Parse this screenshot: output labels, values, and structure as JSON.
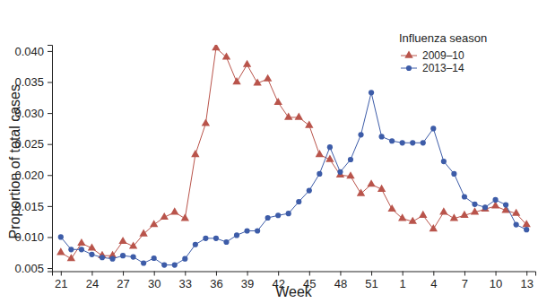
{
  "chart_data": {
    "type": "line",
    "x_label": "Week",
    "y_label": "Proportion of total cases",
    "legend_title": "Influenza season",
    "legend": "upper right",
    "grid": false,
    "categories": [
      21,
      null,
      null,
      24,
      null,
      null,
      27,
      null,
      null,
      30,
      null,
      null,
      33,
      null,
      null,
      36,
      null,
      null,
      39,
      null,
      null,
      42,
      null,
      null,
      45,
      null,
      null,
      48,
      null,
      null,
      51,
      null,
      null,
      1,
      null,
      null,
      4,
      null,
      null,
      7,
      null,
      null,
      10,
      null,
      null,
      13
    ],
    "ylim": [
      0.0045,
      0.041
    ],
    "yticks": [
      0.005,
      {
        "value": 0.01,
        "label": "0.010"
      },
      0.015,
      {
        "value": 0.02,
        "label": "0.020"
      },
      0.025,
      {
        "value": 0.03,
        "label": "0.030"
      },
      0.035,
      {
        "value": 0.04,
        "label": "0.040"
      }
    ],
    "series": [
      {
        "name": "2009–10",
        "color": "#b9544b",
        "marker": "triangle",
        "line_style": "solid",
        "values": [
          0.0075,
          0.0065,
          0.009,
          0.0082,
          0.007,
          0.007,
          0.0093,
          0.0085,
          0.0105,
          0.012,
          0.0132,
          0.014,
          0.013,
          0.0233,
          0.0283,
          0.0405,
          0.039,
          0.035,
          0.0378,
          0.0348,
          0.0355,
          0.0317,
          0.0293,
          0.0293,
          0.028,
          0.0233,
          0.0225,
          0.02,
          0.0198,
          0.017,
          0.0185,
          0.0177,
          0.0145,
          0.013,
          0.0125,
          0.0135,
          0.0113,
          0.014,
          0.013,
          0.0135,
          0.014,
          0.0145,
          0.015,
          0.0143,
          0.0138,
          0.012
        ]
      },
      {
        "name": "2013–14",
        "color": "#3d5ca8",
        "marker": "circle",
        "line_style": "solid",
        "values": [
          0.01,
          0.008,
          0.008,
          0.0072,
          0.0067,
          0.0065,
          0.007,
          0.0068,
          0.0058,
          0.0066,
          0.0055,
          0.0055,
          0.0065,
          0.0088,
          0.0098,
          0.0098,
          0.0092,
          0.0103,
          0.011,
          0.011,
          0.0131,
          0.0135,
          0.0138,
          0.0157,
          0.0175,
          0.0202,
          0.0245,
          0.0205,
          0.0225,
          0.0265,
          0.0333,
          0.0262,
          0.0255,
          0.0252,
          0.0252,
          0.0252,
          0.0275,
          0.0222,
          0.0202,
          0.0165,
          0.0153,
          0.0148,
          0.016,
          0.0152,
          0.012,
          0.0112
        ]
      }
    ]
  }
}
